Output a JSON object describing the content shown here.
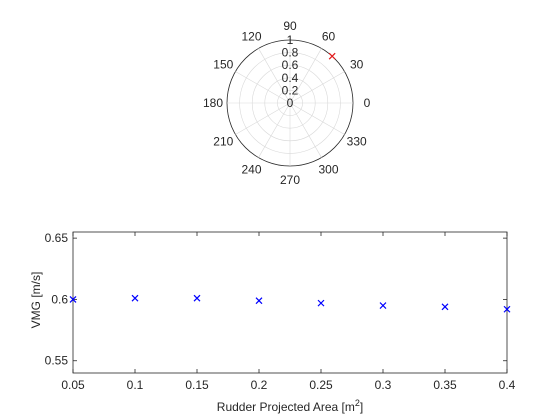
{
  "chart_data": [
    {
      "type": "polar-scatter",
      "theta_ticks_deg": [
        0,
        30,
        60,
        90,
        120,
        150,
        180,
        210,
        240,
        270,
        300,
        330
      ],
      "r_ticks": [
        0,
        0.2,
        0.4,
        0.6,
        0.8,
        1
      ],
      "rlim": [
        0,
        1
      ],
      "grid": true,
      "points": [
        {
          "theta_deg": 48,
          "r": 1,
          "marker": "x",
          "color": "#e41a1c"
        }
      ]
    },
    {
      "type": "scatter",
      "x": [
        0.05,
        0.1,
        0.15,
        0.2,
        0.25,
        0.3,
        0.35,
        0.4
      ],
      "y": [
        0.6,
        0.601,
        0.601,
        0.599,
        0.597,
        0.595,
        0.594,
        0.592
      ],
      "marker": "x",
      "color": "#0000ff",
      "xlim": [
        0.05,
        0.4
      ],
      "ylim": [
        0.54,
        0.655
      ],
      "xticks": [
        "0.05",
        "0.1",
        "0.15",
        "0.2",
        "0.25",
        "0.3",
        "0.35",
        "0.4"
      ],
      "xtick_values": [
        0.05,
        0.1,
        0.15,
        0.2,
        0.25,
        0.3,
        0.35,
        0.4
      ],
      "yticks": [
        "0.55",
        "0.6",
        "0.65"
      ],
      "ytick_values": [
        0.55,
        0.6,
        0.65
      ],
      "xlabel": "Rudder Projected Area [m",
      "xlabel_sup": "2",
      "xlabel_end": "]",
      "ylabel": "VMG [m/s]",
      "grid": false
    }
  ]
}
